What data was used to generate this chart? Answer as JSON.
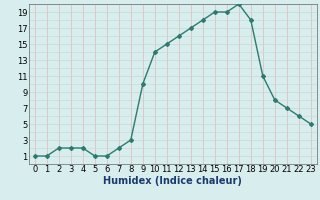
{
  "x": [
    0,
    1,
    2,
    3,
    4,
    5,
    6,
    7,
    8,
    9,
    10,
    11,
    12,
    13,
    14,
    15,
    16,
    17,
    18,
    19,
    20,
    21,
    22,
    23
  ],
  "y": [
    1,
    1,
    2,
    2,
    2,
    1,
    1,
    2,
    3,
    10,
    14,
    15,
    16,
    17,
    18,
    19,
    19,
    20,
    18,
    11,
    8,
    7,
    6,
    5
  ],
  "line_color": "#2d7a6e",
  "marker": "D",
  "marker_size": 2.0,
  "bg_color": "#d8eeee",
  "grid_color_h": "#c8d8d0",
  "grid_color_v": "#e0b8b8",
  "xlabel": "Humidex (Indice chaleur)",
  "xlim": [
    -0.5,
    23.5
  ],
  "ylim": [
    0,
    20
  ],
  "yticks": [
    1,
    3,
    5,
    7,
    9,
    11,
    13,
    15,
    17,
    19
  ],
  "xticks": [
    0,
    1,
    2,
    3,
    4,
    5,
    6,
    7,
    8,
    9,
    10,
    11,
    12,
    13,
    14,
    15,
    16,
    17,
    18,
    19,
    20,
    21,
    22,
    23
  ],
  "xlabel_fontsize": 7,
  "tick_fontsize": 6,
  "xlabel_color": "#1a3a6e",
  "tick_color": "#000000"
}
